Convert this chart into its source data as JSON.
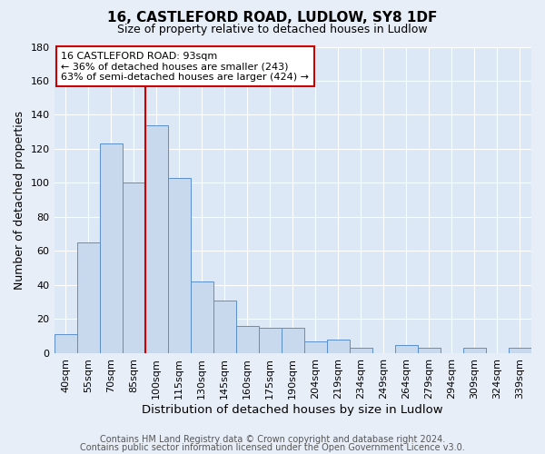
{
  "title": "16, CASTLEFORD ROAD, LUDLOW, SY8 1DF",
  "subtitle": "Size of property relative to detached houses in Ludlow",
  "xlabel": "Distribution of detached houses by size in Ludlow",
  "ylabel": "Number of detached properties",
  "bar_labels": [
    "40sqm",
    "55sqm",
    "70sqm",
    "85sqm",
    "100sqm",
    "115sqm",
    "130sqm",
    "145sqm",
    "160sqm",
    "175sqm",
    "190sqm",
    "204sqm",
    "219sqm",
    "234sqm",
    "249sqm",
    "264sqm",
    "279sqm",
    "294sqm",
    "309sqm",
    "324sqm",
    "339sqm"
  ],
  "bar_values": [
    11,
    65,
    123,
    100,
    134,
    103,
    42,
    31,
    16,
    15,
    15,
    7,
    8,
    3,
    0,
    5,
    3,
    0,
    3,
    0,
    3
  ],
  "bar_color": "#c8d8ed",
  "bar_edge_color": "#5b8fcc",
  "vline_color": "#cc0000",
  "vline_index": 3.5,
  "ylim": [
    0,
    180
  ],
  "yticks": [
    0,
    20,
    40,
    60,
    80,
    100,
    120,
    140,
    160,
    180
  ],
  "annotation_title": "16 CASTLEFORD ROAD: 93sqm",
  "annotation_line1": "← 36% of detached houses are smaller (243)",
  "annotation_line2": "63% of semi-detached houses are larger (424) →",
  "annotation_box_facecolor": "#ffffff",
  "annotation_box_edgecolor": "#cc0000",
  "footer1": "Contains HM Land Registry data © Crown copyright and database right 2024.",
  "footer2": "Contains public sector information licensed under the Open Government Licence v3.0.",
  "fig_facecolor": "#e8eef8",
  "ax_facecolor": "#dce8f5",
  "grid_color": "#ffffff",
  "title_fontsize": 11,
  "subtitle_fontsize": 9,
  "ylabel_fontsize": 9,
  "xlabel_fontsize": 9.5,
  "tick_fontsize": 8,
  "footer_fontsize": 7
}
